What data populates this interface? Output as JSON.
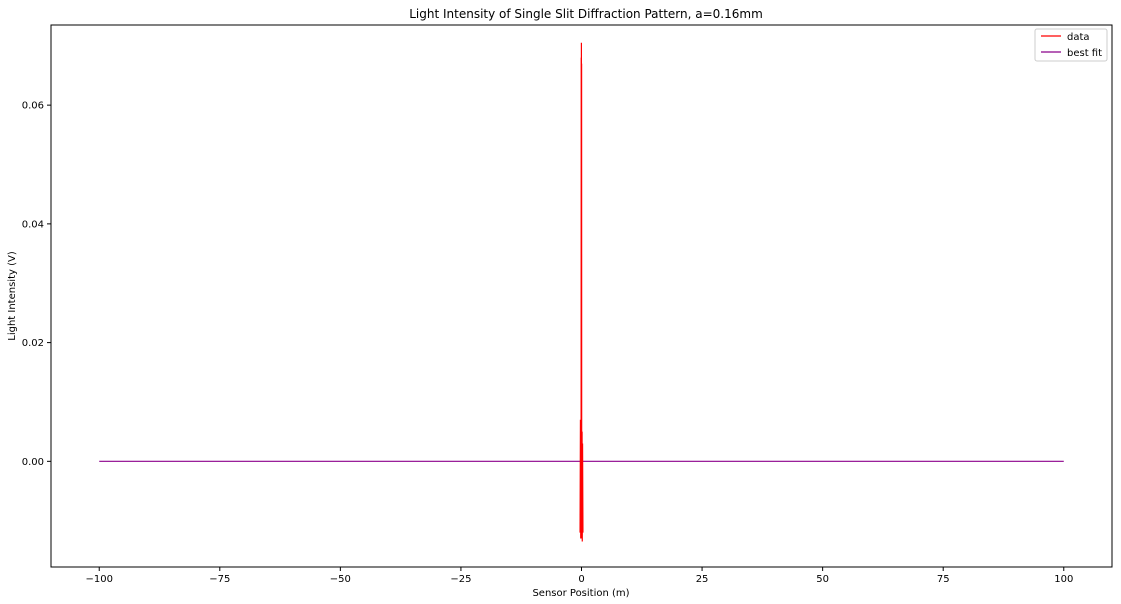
{
  "chart_data": {
    "type": "line",
    "title": "Light Intensity of Single Slit Diffraction Pattern, a=0.16mm",
    "xlabel": "Sensor Position (m)",
    "ylabel": "Light Intensity (V)",
    "xlim": [
      -110,
      110
    ],
    "ylim": [
      -0.0178,
      0.0735
    ],
    "xticks": [
      -100,
      -75,
      -50,
      -25,
      0,
      25,
      50,
      75,
      100
    ],
    "xtick_labels": [
      "−100",
      "−75",
      "−50",
      "−25",
      "0",
      "25",
      "50",
      "75",
      "100"
    ],
    "yticks": [
      0.0,
      0.02,
      0.04,
      0.06
    ],
    "ytick_labels": [
      "0.00",
      "0.02",
      "0.04",
      "0.06"
    ],
    "legend_position": "top-right",
    "grid": false,
    "series": [
      {
        "name": "data",
        "color": "#ff0000",
        "x": [
          -0.3,
          -0.22,
          -0.16,
          -0.12,
          -0.09,
          -0.06,
          -0.04,
          -0.02,
          0.0,
          0.02,
          0.04,
          0.06,
          0.09,
          0.12,
          0.16,
          0.22,
          0.3
        ],
        "y": [
          -0.012,
          0.007,
          -0.013,
          0.006,
          -0.011,
          0.068,
          -0.013,
          0.0705,
          0.0,
          0.067,
          -0.012,
          0.004,
          -0.013,
          0.005,
          -0.0135,
          0.003,
          -0.012
        ]
      },
      {
        "name": "best fit",
        "color": "#8b008b",
        "x": [
          -100,
          100
        ],
        "y": [
          0.0,
          0.0
        ]
      }
    ]
  }
}
